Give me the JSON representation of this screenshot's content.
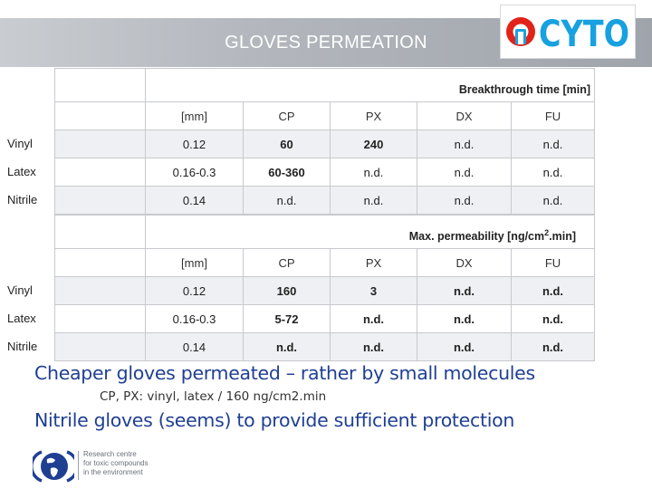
{
  "header": {
    "title": "GLOVES PERMEATION",
    "logo_text": "CYTO",
    "brand_color": "#17a1e0",
    "accent_color": "#e2231a"
  },
  "table1": {
    "caption": "Breakthrough time [min]",
    "headers": [
      "",
      "[mm]",
      "CP",
      "PX",
      "DX",
      "FU"
    ],
    "rows": [
      {
        "label": "Vinyl",
        "cells": [
          "0.12",
          "60",
          "240",
          "n.d.",
          "n.d."
        ]
      },
      {
        "label": "Latex",
        "cells": [
          "0.16-0.3",
          "60-360",
          "n.d.",
          "n.d.",
          "n.d."
        ]
      },
      {
        "label": "Nitrile",
        "cells": [
          "0.14",
          "n.d.",
          "n.d.",
          "n.d.",
          "n.d."
        ]
      }
    ]
  },
  "table2": {
    "caption_pre": "Max. permeability [ng/cm",
    "caption_sup": "2",
    "caption_post": ".min]",
    "headers": [
      "",
      "[mm]",
      "CP",
      "PX",
      "DX",
      "FU"
    ],
    "rows": [
      {
        "label": "Vinyl",
        "cells": [
          "0.12",
          "160",
          "3",
          "n.d.",
          "n.d."
        ]
      },
      {
        "label": "Latex",
        "cells": [
          "0.16-0.3",
          "5-72",
          "n.d.",
          "n.d.",
          "n.d."
        ]
      },
      {
        "label": "Nitrile",
        "cells": [
          "0.14",
          "n.d.",
          "n.d.",
          "n.d.",
          "n.d."
        ]
      }
    ]
  },
  "notes": {
    "line1": "Cheaper gloves permeated – rather by small  molecules",
    "line2": "CP, PX: vinyl, latex / 160 ng/cm2.min",
    "line3": "Nitrile gloves (seems) to provide sufficient protection"
  },
  "footer": {
    "line1": "Research centre",
    "line2": "for toxic compounds",
    "line3": "in the environment",
    "logo_icon": "recetox-globe-icon"
  }
}
